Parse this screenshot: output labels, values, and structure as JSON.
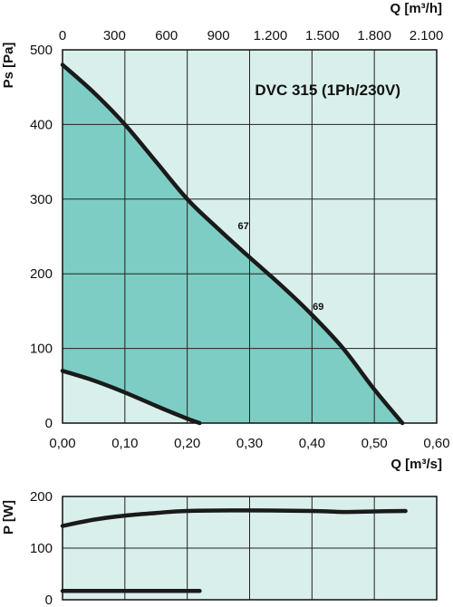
{
  "chart_data": [
    {
      "type": "line",
      "title": "DVC 315 (1Ph/230V)",
      "xlabel": "Q [m³/s]",
      "x2label": "Q [m³/h]",
      "ylabel": "Ps [Pa]",
      "xlim": [
        0,
        0.6
      ],
      "ylim": [
        0,
        500
      ],
      "grid": true,
      "xticks": [
        0,
        0.1,
        0.2,
        0.3,
        0.4,
        0.5,
        0.6
      ],
      "xtick_labels": [
        "0,00",
        "0,10",
        "0,20",
        "0,30",
        "0,40",
        "0,50",
        "0,60"
      ],
      "x2ticks_m3s": [
        0,
        0.08333,
        0.16667,
        0.25,
        0.33333,
        0.41667,
        0.5,
        0.58333
      ],
      "x2tick_labels": [
        "0",
        "300",
        "600",
        "900",
        "1.200",
        "1.500",
        "1.800",
        "2.100"
      ],
      "yticks": [
        0,
        100,
        200,
        300,
        400,
        500
      ],
      "ytick_labels": [
        "0",
        "100",
        "200",
        "300",
        "400",
        "500"
      ],
      "series": [
        {
          "role": "max-curve",
          "x": [
            0,
            0.05,
            0.1,
            0.15,
            0.2,
            0.25,
            0.3,
            0.35,
            0.4,
            0.45,
            0.5,
            0.545
          ],
          "y": [
            480,
            443,
            400,
            350,
            300,
            260,
            222,
            185,
            145,
            100,
            45,
            0
          ]
        },
        {
          "role": "min-curve",
          "x": [
            0,
            0.05,
            0.1,
            0.15,
            0.2,
            0.22
          ],
          "y": [
            70,
            57,
            41,
            23,
            6,
            0
          ]
        }
      ],
      "annotations": [
        {
          "text": "67",
          "x": 0.29,
          "y": 260
        },
        {
          "text": "69",
          "x": 0.41,
          "y": 152
        }
      ],
      "colors": {
        "operating_area": "#7ecdc4",
        "background": "#d9efeb",
        "curve": "#1a1a1a",
        "grid": "#222222"
      }
    },
    {
      "type": "line",
      "xlabel": "",
      "ylabel": "P [W]",
      "xlim": [
        0,
        0.6
      ],
      "ylim": [
        0,
        200
      ],
      "grid": true,
      "yticks": [
        0,
        100,
        200
      ],
      "ytick_labels": [
        "0",
        "100",
        "200"
      ],
      "series": [
        {
          "role": "max-power",
          "x": [
            0,
            0.05,
            0.1,
            0.15,
            0.2,
            0.3,
            0.4,
            0.45,
            0.5,
            0.55
          ],
          "y": [
            143,
            155,
            163,
            168,
            172,
            173,
            172,
            170,
            171,
            172
          ]
        },
        {
          "role": "min-power",
          "x": [
            0,
            0.22
          ],
          "y": [
            17,
            17
          ]
        }
      ],
      "colors": {
        "background": "#d9efeb",
        "curve": "#1a1a1a",
        "grid": "#222222"
      }
    }
  ]
}
